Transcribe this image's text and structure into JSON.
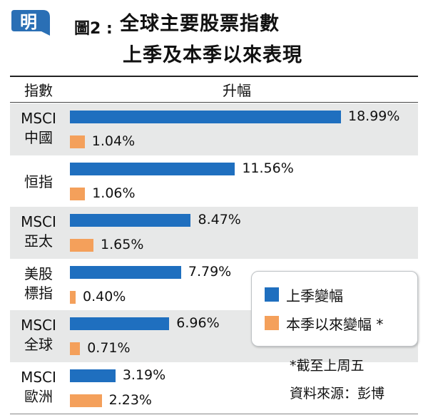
{
  "header": {
    "logo_char": "明",
    "figure_label": "圖2 :",
    "title_line1": "全球主要股票指數",
    "title_line2": "上季及本季以來表現"
  },
  "table": {
    "col_index": "指數",
    "col_change": "升幅"
  },
  "legend": {
    "prev_label": "上季變幅",
    "curr_label": "本季以來變幅 *"
  },
  "notes": {
    "footnote": "*截至上周五",
    "source": "資料來源：彭博"
  },
  "colors": {
    "prev": "#1f6fbf",
    "curr": "#f4a05b",
    "band": "#e7e8e8",
    "logo": "#2a6fb5"
  },
  "chart_data": {
    "type": "bar",
    "orientation": "horizontal",
    "categories": [
      "MSCI\n中國",
      "恒指",
      "MSCI\n亞太",
      "美股\n標指",
      "MSCI\n全球",
      "MSCI\n歐洲"
    ],
    "series": [
      {
        "name": "上季變幅",
        "values": [
          18.99,
          11.56,
          8.47,
          7.79,
          6.96,
          3.19
        ]
      },
      {
        "name": "本季以來變幅 *",
        "values": [
          1.04,
          1.06,
          1.65,
          0.4,
          0.71,
          2.23
        ]
      }
    ],
    "value_labels": [
      [
        "18.99%",
        "11.56%",
        "8.47%",
        "7.79%",
        "6.96%",
        "3.19%"
      ],
      [
        "1.04%",
        "1.06%",
        "1.65%",
        "0.40%",
        "0.71%",
        "2.23%"
      ]
    ],
    "xlim": [
      0,
      19
    ],
    "legend_position": "bottom-right",
    "grid": false
  }
}
